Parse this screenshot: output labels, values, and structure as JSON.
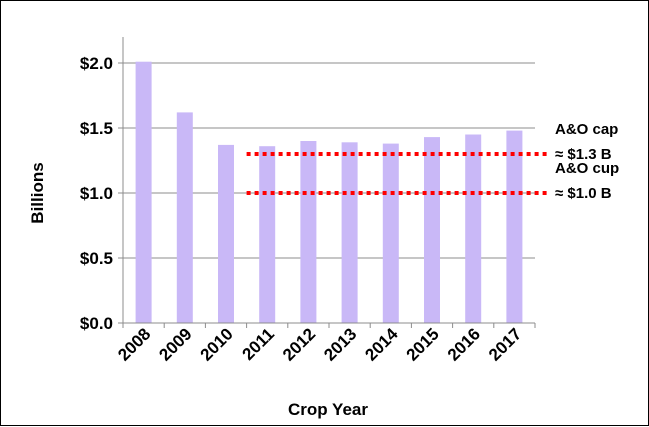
{
  "chart_data": {
    "type": "bar",
    "categories": [
      "2008",
      "2009",
      "2010",
      "2011",
      "2012",
      "2013",
      "2014",
      "2015",
      "2016",
      "2017"
    ],
    "values": [
      2.01,
      1.62,
      1.37,
      1.36,
      1.4,
      1.39,
      1.38,
      1.43,
      1.45,
      1.48
    ],
    "xlabel": "Crop Year",
    "ylabel": "Billions",
    "ylim": [
      0,
      2.0
    ],
    "yticks": [
      0,
      0.5,
      1.0,
      1.5,
      2.0
    ],
    "ytick_labels": [
      "$0.0",
      "$0.5",
      "$1.0",
      "$1.5",
      "$2.0"
    ],
    "grid": true,
    "bar_color": "#c9b8f7",
    "reference_lines": [
      {
        "value": 1.3,
        "start_category": "2011",
        "color": "#ff0000",
        "style": "dotted",
        "label_line1": "A&O cap",
        "label_line2": "≈ $1.3 B"
      },
      {
        "value": 1.0,
        "start_category": "2011",
        "color": "#ff0000",
        "style": "dotted",
        "label_line1": "A&O cup",
        "label_line2": "≈ $1.0 B"
      }
    ]
  }
}
